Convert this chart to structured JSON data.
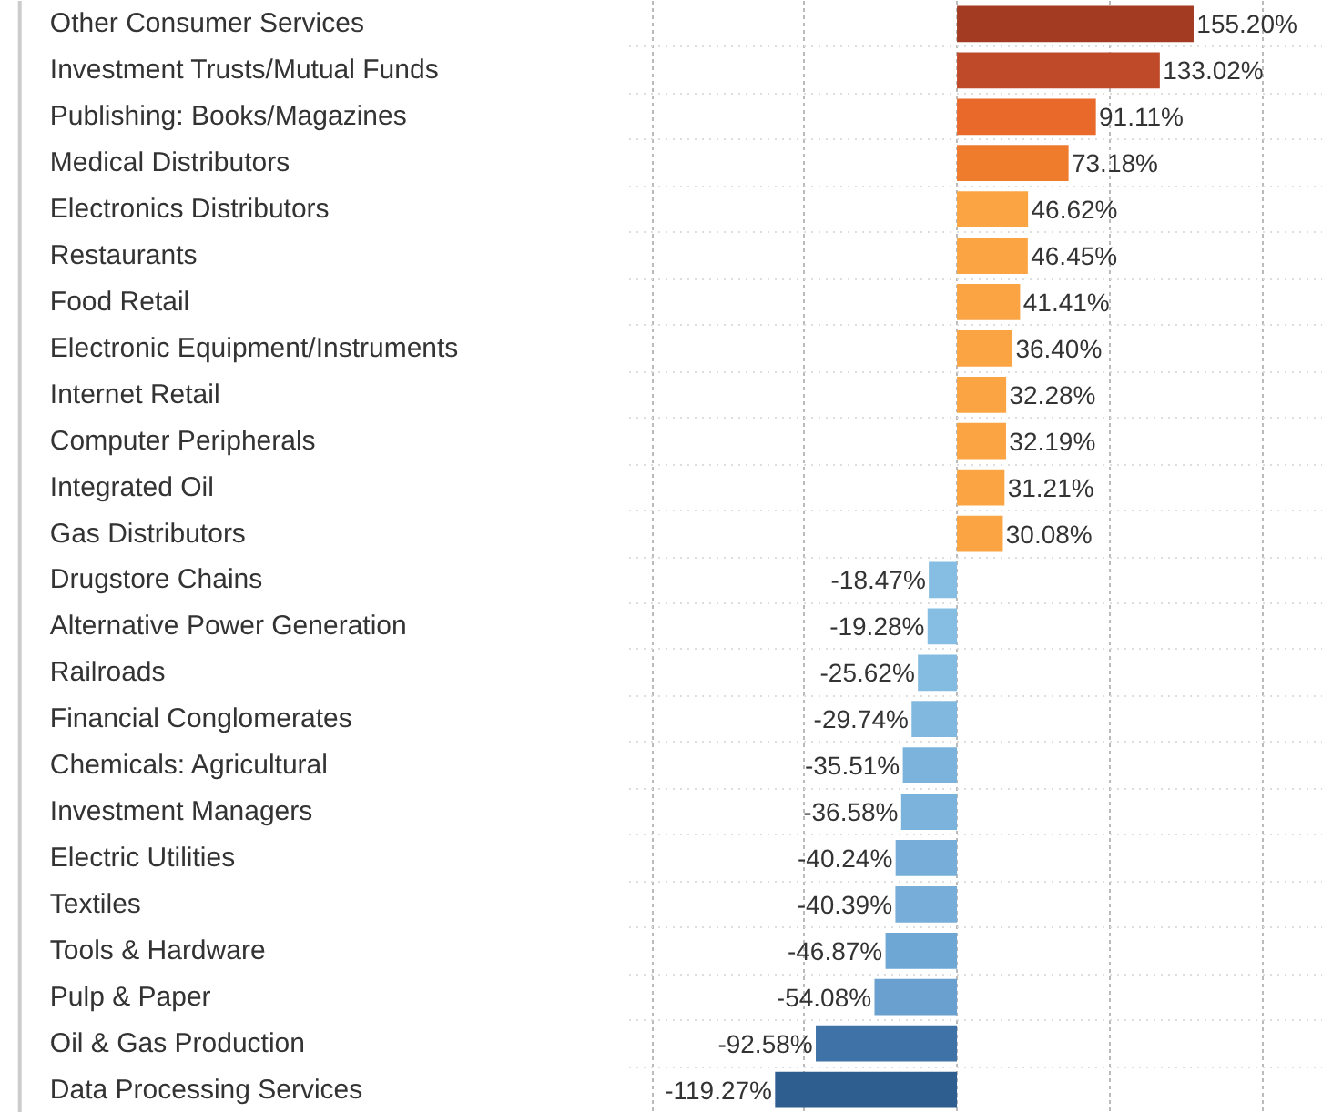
{
  "chart_data": {
    "type": "bar",
    "orientation": "horizontal",
    "categories": [
      "Other Consumer Services",
      "Investment Trusts/Mutual Funds",
      "Publishing: Books/Magazines",
      "Medical Distributors",
      "Electronics Distributors",
      "Restaurants",
      "Food Retail",
      "Electronic Equipment/Instruments",
      "Internet Retail",
      "Computer Peripherals",
      "Integrated Oil",
      "Gas Distributors",
      "Drugstore Chains",
      "Alternative Power Generation",
      "Railroads",
      "Financial Conglomerates",
      "Chemicals: Agricultural",
      "Investment Managers",
      "Electric Utilities",
      "Textiles",
      "Tools & Hardware",
      "Pulp & Paper",
      "Oil & Gas Production",
      "Data Processing Services"
    ],
    "values": [
      155.2,
      133.02,
      91.11,
      73.18,
      46.62,
      46.45,
      41.41,
      36.4,
      32.28,
      32.19,
      31.21,
      30.08,
      -18.47,
      -19.28,
      -25.62,
      -29.74,
      -35.51,
      -36.58,
      -40.24,
      -40.39,
      -46.87,
      -54.08,
      -92.58,
      -119.27
    ],
    "value_labels": [
      "155.20%",
      "133.02%",
      "91.11%",
      "73.18%",
      "46.62%",
      "46.45%",
      "41.41%",
      "36.40%",
      "32.28%",
      "32.19%",
      "31.21%",
      "30.08%",
      "-18.47%",
      "-19.28%",
      "-25.62%",
      "-29.74%",
      "-35.51%",
      "-36.58%",
      "-40.24%",
      "-40.39%",
      "-46.87%",
      "-54.08%",
      "-92.58%",
      "-119.27%"
    ],
    "colors": [
      "#a33b22",
      "#bf4a2a",
      "#e8692a",
      "#ef7b2c",
      "#fba443",
      "#fba443",
      "#fba443",
      "#fba443",
      "#fba443",
      "#fba443",
      "#fba443",
      "#fba443",
      "#86bde3",
      "#86bde3",
      "#84bbe1",
      "#80b8df",
      "#7bb3dc",
      "#7bb3dc",
      "#76aed9",
      "#76aed9",
      "#6fa7d4",
      "#6aa0cf",
      "#3f73a8",
      "#2e5d90"
    ],
    "xlim": [
      -215,
      240
    ],
    "xticks": [
      {
        "value": -200,
        "label": null
      },
      {
        "value": -100,
        "label": null
      },
      {
        "value": 0,
        "label": null
      },
      {
        "value": 100,
        "label": null
      },
      {
        "value": 200,
        "label": null
      }
    ],
    "tick_labels": false,
    "grid": true
  }
}
